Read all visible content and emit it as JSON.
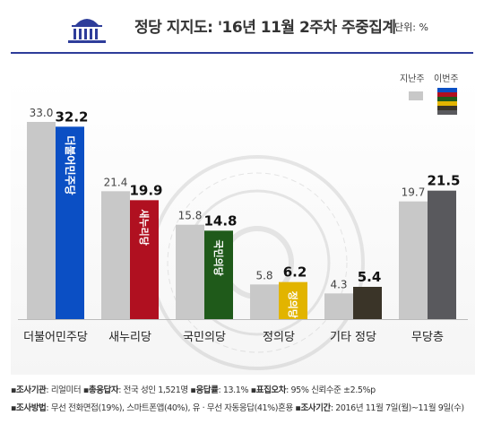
{
  "title": "정당 지지도: '16년 11월 2주차 주중집계",
  "unit": "단위: %",
  "legend": {
    "last_week": "지난주",
    "this_week": "이번주"
  },
  "colors": {
    "last_week": "#c8c8c8",
    "parties": [
      "#0b4fc4",
      "#b01020",
      "#1f5a1a",
      "#e2b400",
      "#3a3428",
      "#59595d"
    ]
  },
  "chart_data": {
    "type": "bar",
    "categories": [
      "더불어민주당",
      "새누리당",
      "국민의당",
      "정의당",
      "기타 정당",
      "무당층"
    ],
    "series": [
      {
        "name": "지난주",
        "values": [
          33.0,
          21.4,
          15.8,
          5.8,
          4.3,
          19.7
        ]
      },
      {
        "name": "이번주",
        "values": [
          32.2,
          19.9,
          14.8,
          6.2,
          5.4,
          21.5
        ]
      }
    ],
    "last_labels": [
      "33.0",
      "21.4",
      "15.8",
      "5.8",
      "4.3",
      "19.7"
    ],
    "this_labels": [
      "32.2",
      "19.9",
      "14.8",
      "6.2",
      "5.4",
      "21.5"
    ],
    "bar_logos": [
      "더불어민주당",
      "새누리당",
      "국민의당",
      "정의당",
      "",
      ""
    ],
    "ylim": [
      0,
      36
    ],
    "grid": false
  },
  "footer": {
    "line1": [
      {
        "k": "▪조사기관",
        "v": ": 리얼미터 "
      },
      {
        "k": "▪총응답자",
        "v": ": 전국 성인 1,521명 "
      },
      {
        "k": "▪응답률",
        "v": ": 13.1% "
      },
      {
        "k": "▪표집오차",
        "v": ": 95% 신뢰수준 ±2.5%p"
      }
    ],
    "line2": [
      {
        "k": "▪조사방법",
        "v": ": 무선 전화면접(19%), 스마트폰앱(40%), 유 · 무선 자동응답(41%)혼용 "
      },
      {
        "k": "▪조사기간",
        "v": ": 2016년 11월 7일(월)~11월 9일(수)"
      }
    ]
  }
}
